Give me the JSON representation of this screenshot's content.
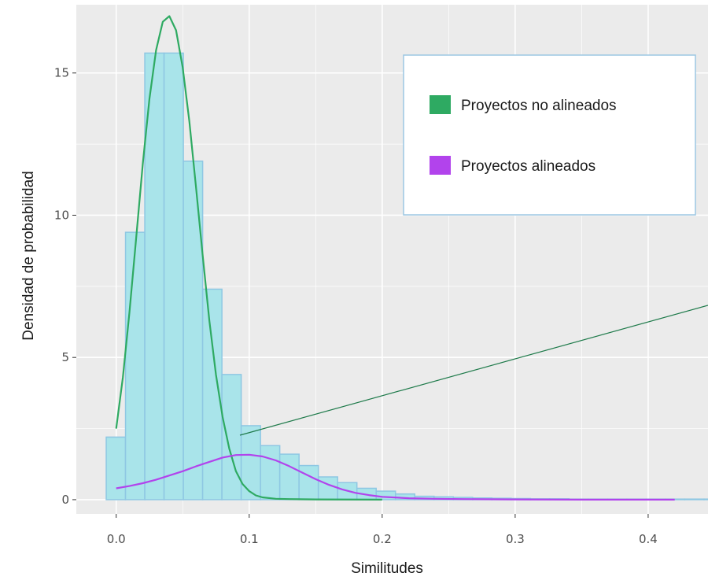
{
  "chart_data": {
    "type": "bar",
    "xlabel": "Similitudes",
    "ylabel": "Densidad de probabilidad",
    "xlim": [
      -0.03,
      0.445
    ],
    "ylim": [
      -0.5,
      17.4
    ],
    "x_ticks": [
      {
        "value": 0.0,
        "label": "0.0"
      },
      {
        "value": 0.1,
        "label": "0.1"
      },
      {
        "value": 0.2,
        "label": "0.2"
      },
      {
        "value": 0.3,
        "label": "0.3"
      },
      {
        "value": 0.4,
        "label": "0.4"
      }
    ],
    "y_ticks": [
      {
        "value": 0,
        "label": "0"
      },
      {
        "value": 5,
        "label": "5"
      },
      {
        "value": 10,
        "label": "10"
      },
      {
        "value": 15,
        "label": "15"
      }
    ],
    "grid": true,
    "legend_position": "top-right",
    "histogram": {
      "bin_width": 0.0145,
      "bin_start": -0.0075,
      "fill_color": "#a9e4ea",
      "edge_color": "#8ec7e3",
      "values": [
        2.2,
        9.4,
        15.7,
        15.7,
        11.9,
        7.4,
        4.4,
        2.6,
        1.9,
        1.6,
        1.2,
        0.8,
        0.6,
        0.4,
        0.3,
        0.2,
        0.12,
        0.1,
        0.08,
        0.06,
        0.05,
        0.04,
        0.03,
        0.03,
        0.02,
        0.02,
        0.02,
        0.02,
        0.02,
        0.02,
        0.02,
        0.02,
        0.01
      ]
    },
    "series": [
      {
        "name": "Proyectos no alineados",
        "type": "density",
        "color": "#2eaa62",
        "x": [
          0.0,
          0.005,
          0.01,
          0.015,
          0.02,
          0.025,
          0.03,
          0.035,
          0.04,
          0.045,
          0.05,
          0.055,
          0.06,
          0.065,
          0.07,
          0.075,
          0.08,
          0.085,
          0.09,
          0.095,
          0.1,
          0.105,
          0.11,
          0.12,
          0.13,
          0.15,
          0.2
        ],
        "values": [
          2.5,
          4.3,
          6.6,
          9.2,
          11.8,
          14.1,
          15.8,
          16.8,
          17.0,
          16.5,
          15.2,
          13.3,
          11.0,
          8.6,
          6.3,
          4.4,
          2.9,
          1.8,
          1.0,
          0.55,
          0.3,
          0.15,
          0.08,
          0.03,
          0.02,
          0.01,
          0.0
        ]
      },
      {
        "name": "Proyectos alineados",
        "type": "density",
        "color": "#b243ec",
        "x": [
          0.0,
          0.01,
          0.02,
          0.03,
          0.04,
          0.05,
          0.06,
          0.07,
          0.08,
          0.09,
          0.1,
          0.11,
          0.12,
          0.13,
          0.14,
          0.15,
          0.16,
          0.17,
          0.18,
          0.19,
          0.2,
          0.22,
          0.24,
          0.26,
          0.3,
          0.35,
          0.4,
          0.42
        ],
        "values": [
          0.4,
          0.48,
          0.58,
          0.7,
          0.85,
          1.0,
          1.17,
          1.33,
          1.48,
          1.57,
          1.58,
          1.52,
          1.38,
          1.18,
          0.95,
          0.72,
          0.52,
          0.36,
          0.24,
          0.16,
          0.1,
          0.05,
          0.03,
          0.02,
          0.01,
          0.0,
          0.0,
          0.0
        ]
      }
    ]
  }
}
